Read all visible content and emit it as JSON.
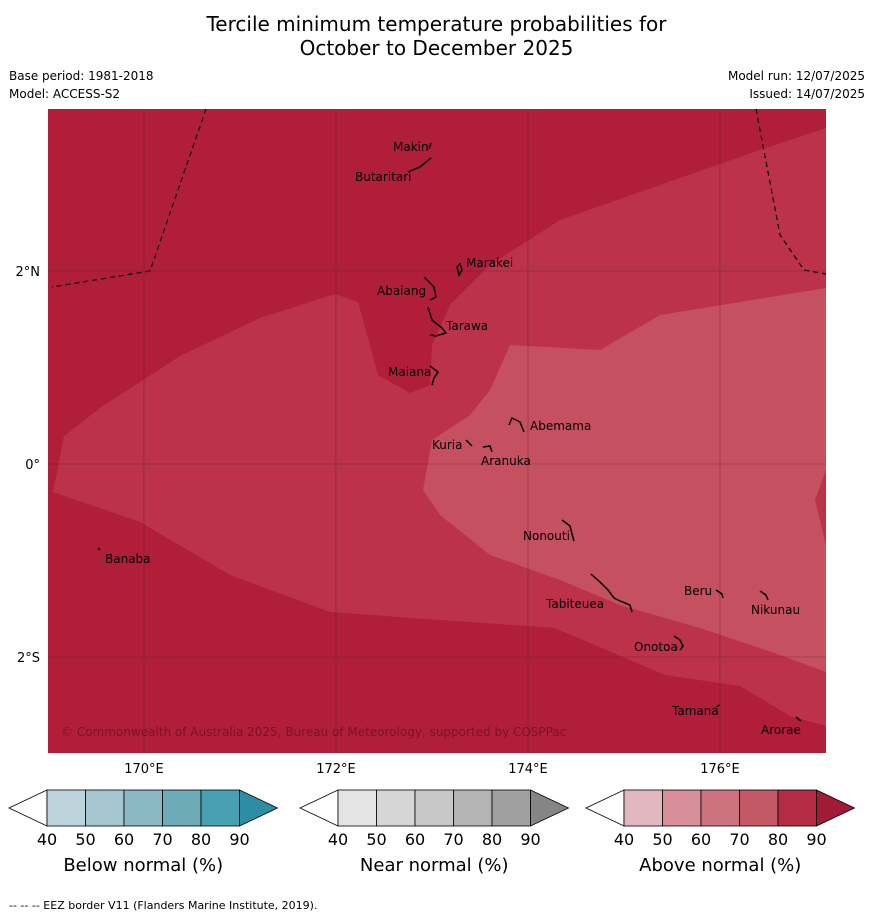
{
  "title": {
    "line1": "Tercile minimum temperature probabilities for",
    "line2": "October to December 2025"
  },
  "meta": {
    "base_period": "Base period: 1981-2018",
    "model": "Model: ACCESS-S2",
    "model_run": "Model run: 12/07/2025",
    "issued": "Issued: 14/07/2025"
  },
  "map": {
    "lat_labels": [
      "2°N",
      "0°",
      "2°S"
    ],
    "lon_labels": [
      "170°E",
      "172°E",
      "174°E",
      "176°E"
    ],
    "copyright": "© Commonwealth of Australia 2025, Bureau of Meteorology, supported by COSPPac",
    "colors": {
      "p90": "#b01e3a",
      "p80": "#bb3249",
      "p70": "#c5505f"
    },
    "islands": [
      {
        "name": "Makin",
        "lon": 172.9,
        "lat": 3.2
      },
      {
        "name": "Butaritari",
        "lon": 172.8,
        "lat": 3.1
      },
      {
        "name": "Marakei",
        "lon": 173.3,
        "lat": 2.0
      },
      {
        "name": "Abaiang",
        "lon": 173.0,
        "lat": 1.8
      },
      {
        "name": "Tarawa",
        "lon": 173.0,
        "lat": 1.4
      },
      {
        "name": "Maiana",
        "lon": 173.0,
        "lat": 0.9
      },
      {
        "name": "Abemama",
        "lon": 173.9,
        "lat": 0.4
      },
      {
        "name": "Kuria",
        "lon": 173.4,
        "lat": 0.2
      },
      {
        "name": "Aranuka",
        "lon": 173.6,
        "lat": 0.2
      },
      {
        "name": "Banaba",
        "lon": 169.5,
        "lat": -0.9
      },
      {
        "name": "Nonouti",
        "lon": 174.4,
        "lat": -0.7
      },
      {
        "name": "Tabiteuea",
        "lon": 175.0,
        "lat": -1.4
      },
      {
        "name": "Beru",
        "lon": 176.0,
        "lat": -1.3
      },
      {
        "name": "Nikunau",
        "lon": 176.4,
        "lat": -1.4
      },
      {
        "name": "Onotoa",
        "lon": 175.6,
        "lat": -1.8
      },
      {
        "name": "Tamana",
        "lon": 176.0,
        "lat": -2.5
      },
      {
        "name": "Arorae",
        "lon": 176.8,
        "lat": -2.6
      }
    ]
  },
  "legends": [
    {
      "title": "Below normal (%)",
      "ticks": [
        "40",
        "50",
        "60",
        "70",
        "80",
        "90"
      ],
      "colors": [
        "#bed4dc",
        "#a6c6cf",
        "#8ab8c3",
        "#6dabb9",
        "#47a1b3",
        "#2b8ea3"
      ]
    },
    {
      "title": "Near normal (%)",
      "ticks": [
        "40",
        "50",
        "60",
        "70",
        "80",
        "90"
      ],
      "colors": [
        "#e4e4e4",
        "#d6d6d6",
        "#c8c8c8",
        "#b4b4b4",
        "#a0a0a0",
        "#858585"
      ]
    },
    {
      "title": "Above normal (%)",
      "ticks": [
        "40",
        "50",
        "60",
        "70",
        "80",
        "90"
      ],
      "colors": [
        "#e3b7bf",
        "#d78e99",
        "#cd737f",
        "#c45966",
        "#b52d45",
        "#a31a36"
      ]
    }
  ],
  "footer": "--  --  -- EEZ border V11 (Flanders Marine Institute, 2019)."
}
